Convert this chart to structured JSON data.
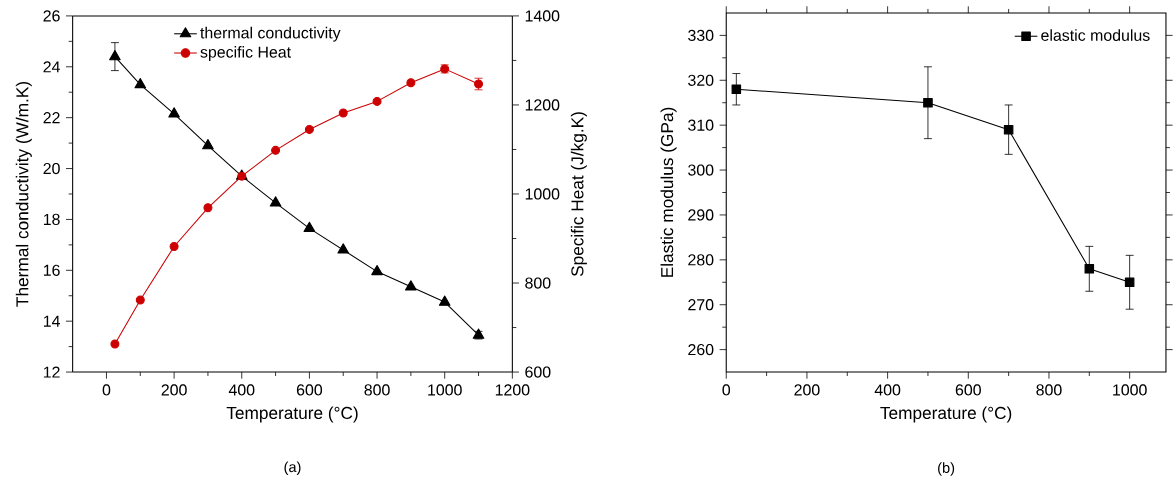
{
  "chart_data": [
    {
      "type": "line",
      "xlabel": "Temperature (°C)",
      "ylabel": "Thermal conductivity (W/m.K)",
      "y2label": "Specific Heat (J/kg.K)",
      "x": [
        25,
        100,
        200,
        300,
        400,
        500,
        600,
        700,
        800,
        900,
        1000,
        1100
      ],
      "xlim": [
        -100,
        1200
      ],
      "xticks": [
        0,
        200,
        400,
        600,
        800,
        1000,
        1200
      ],
      "ylim": [
        12,
        26
      ],
      "yticks": [
        12,
        14,
        16,
        18,
        20,
        22,
        24,
        26
      ],
      "y2lim": [
        600,
        1400
      ],
      "y2ticks": [
        600,
        800,
        1000,
        1200,
        1400
      ],
      "legend": "top",
      "grid": false,
      "annotations": [
        "(a)"
      ],
      "series": [
        {
          "name": "thermal conductivity",
          "color": "#000000",
          "marker": "triangle",
          "values": [
            24.4,
            23.3,
            22.15,
            20.9,
            19.7,
            18.65,
            17.65,
            16.8,
            15.95,
            15.35,
            14.75,
            13.45
          ],
          "errors": [
            0.55,
            null,
            null,
            null,
            null,
            null,
            null,
            null,
            null,
            null,
            null,
            0.15
          ]
        },
        {
          "name": "specific Heat",
          "color": "#cc0000",
          "marker": "circle",
          "axis": "y2",
          "values": [
            663,
            762,
            882,
            969,
            1040,
            1098,
            1145,
            1182,
            1208,
            1250,
            1281,
            1247
          ],
          "errors": [
            null,
            null,
            null,
            null,
            null,
            null,
            null,
            null,
            null,
            null,
            9,
            13
          ]
        }
      ]
    },
    {
      "type": "line",
      "xlabel": "Temperature (°C)",
      "ylabel": "Elastic modulus (GPa)",
      "x": [
        25,
        500,
        700,
        900,
        1000
      ],
      "xlim": [
        0,
        1090
      ],
      "xticks": [
        0,
        200,
        400,
        600,
        800,
        1000
      ],
      "ylim": [
        255,
        335
      ],
      "yticks": [
        260,
        270,
        280,
        290,
        300,
        310,
        320,
        330
      ],
      "legend": "top right",
      "grid": false,
      "annotations": [
        "(b)"
      ],
      "series": [
        {
          "name": "elastic modulus",
          "color": "#000000",
          "marker": "square",
          "values": [
            318,
            315,
            309,
            278,
            275
          ],
          "errors": [
            3.5,
            8,
            5.5,
            5,
            6
          ]
        }
      ]
    }
  ]
}
